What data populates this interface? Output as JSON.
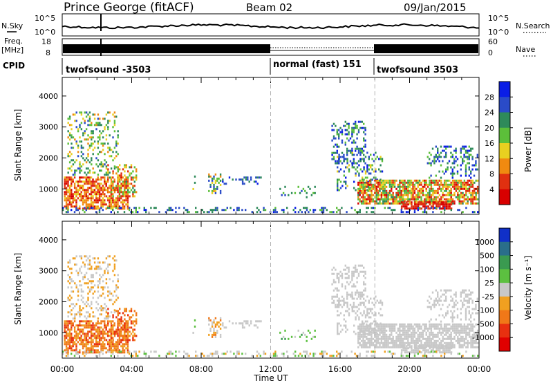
{
  "header": {
    "station": "Prince George (fitACF)",
    "beam": "Beam 02",
    "date": "09/Jan/2015"
  },
  "side_labels": {
    "nsky": "N.Sky",
    "nsearch": "N.Search",
    "freq_line1": "Freq.",
    "freq_line2": "[MHz]",
    "nave": "Nave",
    "cpid": "CPID"
  },
  "nsky_ticks": {
    "top": "10^5",
    "bottom": "10^0"
  },
  "freq_ticks": {
    "top": "18",
    "bottom": "8"
  },
  "nave_ticks": {
    "top": "60",
    "bottom": "0"
  },
  "cpid_segments": [
    {
      "label": "twofsound -3503",
      "start_h": 0,
      "end_h": 12
    },
    {
      "label": "normal (fast) 151",
      "start_h": 12,
      "end_h": 18
    },
    {
      "label": "twofsound 3503",
      "start_h": 18,
      "end_h": 24
    }
  ],
  "chart_data": [
    {
      "type": "heatmap",
      "name": "power",
      "ylabel": "Slant Range [km]",
      "xlabel": "Time UT",
      "xlim_hours": [
        0,
        24
      ],
      "ylim": [
        180,
        4600
      ],
      "yticks": [
        "1000",
        "2000",
        "3000",
        "4000"
      ],
      "xticks": [
        "00:00",
        "04:00",
        "08:00",
        "12:00",
        "16:00",
        "20:00",
        "00:00"
      ],
      "colorbar": {
        "label": "Power [dB]",
        "ticks": [
          "4",
          "8",
          "12",
          "16",
          "20",
          "24",
          "28"
        ],
        "colors": [
          "#0a1ee6",
          "#2a4bc8",
          "#2e8a5a",
          "#5cbf3a",
          "#e8d020",
          "#f08a10",
          "#e03010",
          "#d80000"
        ]
      }
    },
    {
      "type": "heatmap",
      "name": "velocity",
      "ylabel": "Slant Range [km]",
      "xlabel": "Time UT",
      "xlim_hours": [
        0,
        24
      ],
      "ylim": [
        180,
        4600
      ],
      "yticks": [
        "1000",
        "2000",
        "3000",
        "4000"
      ],
      "xticks": [
        "00:00",
        "04:00",
        "08:00",
        "12:00",
        "16:00",
        "20:00",
        "00:00"
      ],
      "colorbar": {
        "label": "Velocity [m s⁻¹]",
        "ticks": [
          "1000",
          "500",
          "100",
          "25",
          "-25",
          "-100",
          "-500",
          "-1000"
        ],
        "colors": [
          "#1030c8",
          "#2a6e8a",
          "#3a9a50",
          "#5cc040",
          "#c8c8c8",
          "#f0a020",
          "#f07818",
          "#e83010",
          "#e00000"
        ]
      }
    }
  ],
  "xaxis": {
    "ticks": [
      "00:00",
      "04:00",
      "08:00",
      "12:00",
      "16:00",
      "20:00",
      "00:00"
    ],
    "label": "Time UT"
  },
  "colors": {
    "axis": "#000000",
    "dashed": "#b4b4b4",
    "ground_gray": "#c8c8c8"
  }
}
